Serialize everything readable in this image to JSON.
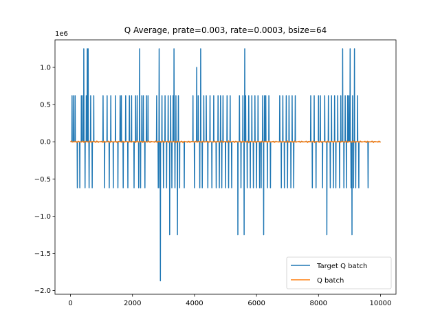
{
  "chart_data": {
    "type": "line",
    "title": "Q Average, prate=0.003, rate=0.0003, bsize=64",
    "xlabel": "",
    "ylabel": "",
    "y_offset_label": "1e6",
    "xlim": [
      -500,
      10500
    ],
    "ylim": [
      -2.05,
      1.37
    ],
    "x_ticks": [
      0,
      2000,
      4000,
      6000,
      8000,
      10000
    ],
    "x_tick_labels": [
      "0",
      "2000",
      "4000",
      "6000",
      "8000",
      "10000"
    ],
    "y_ticks": [
      -2.0,
      -1.5,
      -1.0,
      -0.5,
      0.0,
      0.5,
      1.0
    ],
    "y_tick_labels": [
      "−2.0",
      "−1.5",
      "−1.0",
      "−0.5",
      "0.0",
      "0.5",
      "1.0"
    ],
    "grid": false,
    "legend_position": "lower-right",
    "series": [
      {
        "name": "Target Q batch",
        "color": "#1f77b4",
        "x_range": [
          0,
          10000
        ],
        "baseline": 0,
        "spikes": [
          [
            50,
            0.62
          ],
          [
            100,
            0.62
          ],
          [
            150,
            0.62
          ],
          [
            220,
            -0.62
          ],
          [
            300,
            -0.62
          ],
          [
            350,
            0.62
          ],
          [
            400,
            0.62
          ],
          [
            430,
            1.25
          ],
          [
            470,
            -0.62
          ],
          [
            510,
            0.62
          ],
          [
            540,
            1.25
          ],
          [
            570,
            1.25
          ],
          [
            600,
            -0.62
          ],
          [
            650,
            0.62
          ],
          [
            700,
            -0.62
          ],
          [
            750,
            0.62
          ],
          [
            1050,
            0.62
          ],
          [
            1100,
            -0.62
          ],
          [
            1180,
            0.62
          ],
          [
            1250,
            -0.62
          ],
          [
            1300,
            0.62
          ],
          [
            1380,
            -0.62
          ],
          [
            1450,
            0.62
          ],
          [
            1530,
            -0.62
          ],
          [
            1600,
            0.62
          ],
          [
            1640,
            0.62
          ],
          [
            1700,
            -0.62
          ],
          [
            1780,
            0.62
          ],
          [
            1850,
            -0.62
          ],
          [
            1900,
            0.62
          ],
          [
            1970,
            0.62
          ],
          [
            2050,
            -0.62
          ],
          [
            2100,
            0.62
          ],
          [
            2150,
            0.62
          ],
          [
            2200,
            -0.62
          ],
          [
            2230,
            1.25
          ],
          [
            2260,
            -0.62
          ],
          [
            2300,
            0.62
          ],
          [
            2350,
            0.62
          ],
          [
            2400,
            -0.62
          ],
          [
            2450,
            0.62
          ],
          [
            2500,
            0.62
          ],
          [
            2780,
            0.62
          ],
          [
            2830,
            -0.62
          ],
          [
            2860,
            1.25
          ],
          [
            2880,
            -0.62
          ],
          [
            2900,
            -1.87
          ],
          [
            2950,
            0.62
          ],
          [
            3000,
            -0.62
          ],
          [
            3050,
            0.62
          ],
          [
            3100,
            -0.62
          ],
          [
            3150,
            0.62
          ],
          [
            3200,
            -1.25
          ],
          [
            3230,
            0.62
          ],
          [
            3270,
            -0.62
          ],
          [
            3310,
            0.62
          ],
          [
            3340,
            1.25
          ],
          [
            3370,
            -0.62
          ],
          [
            3400,
            0.62
          ],
          [
            3450,
            -1.25
          ],
          [
            3480,
            0.62
          ],
          [
            3520,
            -0.62
          ],
          [
            3670,
            -0.62
          ],
          [
            3950,
            0.62
          ],
          [
            4000,
            -0.62
          ],
          [
            4070,
            1.0
          ],
          [
            4120,
            0.62
          ],
          [
            4170,
            -0.62
          ],
          [
            4200,
            1.25
          ],
          [
            4250,
            -0.62
          ],
          [
            4300,
            0.62
          ],
          [
            4380,
            0.62
          ],
          [
            4430,
            -0.62
          ],
          [
            4500,
            0.62
          ],
          [
            4560,
            -0.62
          ],
          [
            4620,
            0.62
          ],
          [
            4700,
            -0.62
          ],
          [
            4760,
            0.62
          ],
          [
            4800,
            -0.62
          ],
          [
            4840,
            0.62
          ],
          [
            4880,
            -0.62
          ],
          [
            4920,
            0.62
          ],
          [
            5000,
            -0.62
          ],
          [
            5050,
            0.62
          ],
          [
            5100,
            -0.62
          ],
          [
            5150,
            0.62
          ],
          [
            5200,
            -0.62
          ],
          [
            5400,
            -1.25
          ],
          [
            5450,
            0.62
          ],
          [
            5500,
            -0.62
          ],
          [
            5560,
            0.62
          ],
          [
            5600,
            -1.25
          ],
          [
            5620,
            1.25
          ],
          [
            5650,
            0.62
          ],
          [
            5700,
            -0.62
          ],
          [
            5750,
            0.62
          ],
          [
            5800,
            -0.62
          ],
          [
            5850,
            0.62
          ],
          [
            5900,
            -0.62
          ],
          [
            5950,
            0.62
          ],
          [
            6000,
            -0.62
          ],
          [
            6050,
            0.62
          ],
          [
            6100,
            -0.62
          ],
          [
            6150,
            -0.62
          ],
          [
            6200,
            0.62
          ],
          [
            6230,
            -1.25
          ],
          [
            6260,
            0.62
          ],
          [
            6300,
            0.62
          ],
          [
            6350,
            -0.62
          ],
          [
            6400,
            0.62
          ],
          [
            6450,
            -0.62
          ],
          [
            6750,
            0.62
          ],
          [
            6800,
            -0.62
          ],
          [
            6850,
            0.62
          ],
          [
            6900,
            -0.62
          ],
          [
            6960,
            0.62
          ],
          [
            7000,
            -0.62
          ],
          [
            7050,
            0.62
          ],
          [
            7110,
            -0.62
          ],
          [
            7150,
            0.62
          ],
          [
            7200,
            -0.62
          ],
          [
            7250,
            0.62
          ],
          [
            7750,
            0.62
          ],
          [
            7800,
            -0.62
          ],
          [
            7860,
            0.62
          ],
          [
            7920,
            -0.62
          ],
          [
            8000,
            0.62
          ],
          [
            8060,
            0.62
          ],
          [
            8130,
            -0.62
          ],
          [
            8200,
            0.62
          ],
          [
            8270,
            -1.25
          ],
          [
            8320,
            0.62
          ],
          [
            8380,
            -0.62
          ],
          [
            8420,
            0.62
          ],
          [
            8480,
            -0.62
          ],
          [
            8520,
            0.62
          ],
          [
            8560,
            -0.62
          ],
          [
            8620,
            0.62
          ],
          [
            8680,
            -0.62
          ],
          [
            8720,
            0.62
          ],
          [
            8780,
            1.25
          ],
          [
            8820,
            -0.62
          ],
          [
            8860,
            0.62
          ],
          [
            8900,
            -0.62
          ],
          [
            8940,
            0.62
          ],
          [
            8980,
            0.62
          ],
          [
            9020,
            1.25
          ],
          [
            9050,
            -0.62
          ],
          [
            9080,
            -1.25
          ],
          [
            9100,
            0.62
          ],
          [
            9130,
            -0.62
          ],
          [
            9160,
            1.25
          ],
          [
            9200,
            -0.62
          ],
          [
            9260,
            0.62
          ],
          [
            9300,
            -0.62
          ],
          [
            9600,
            -0.62
          ]
        ]
      },
      {
        "name": "Q batch",
        "color": "#ff7f0e",
        "x_range": [
          0,
          10000
        ],
        "baseline": 0,
        "approx_amplitude": 0.01
      }
    ]
  }
}
